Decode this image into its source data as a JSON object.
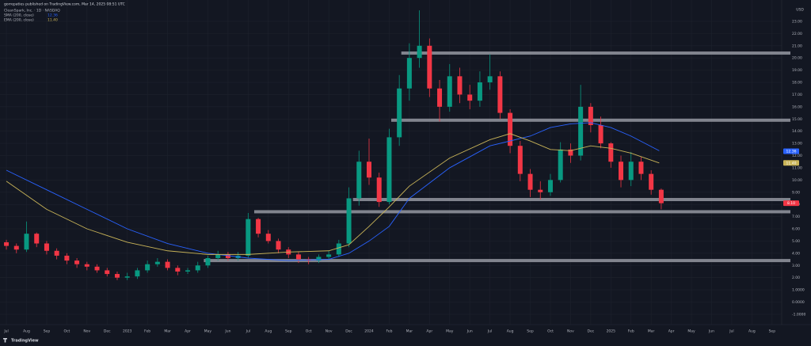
{
  "chart_data": {
    "type": "candlestick",
    "title": "gorrepaties published on TradingView.com, Mar 14, 2025 08:51 UTC",
    "subtitle": "CleanSpark, Inc. · 1D · NASDAQ",
    "currency": "USD",
    "brand": "TradingView",
    "up_color": "#089981",
    "down_color": "#f23645",
    "grid": true,
    "xlim": [
      -0.12,
      38.4
    ],
    "ylim": [
      -1.2,
      24.1
    ],
    "xticks": [
      {
        "value": 0,
        "label": "Jul"
      },
      {
        "value": 1,
        "label": "Aug"
      },
      {
        "value": 2,
        "label": "Sep"
      },
      {
        "value": 3,
        "label": "Oct"
      },
      {
        "value": 4,
        "label": "Nov"
      },
      {
        "value": 5,
        "label": "Dec"
      },
      {
        "value": 6,
        "label": "2023"
      },
      {
        "value": 7,
        "label": "Feb"
      },
      {
        "value": 8,
        "label": "Mar"
      },
      {
        "value": 9,
        "label": "Apr"
      },
      {
        "value": 10,
        "label": "May"
      },
      {
        "value": 11,
        "label": "Jun"
      },
      {
        "value": 12,
        "label": "Jul"
      },
      {
        "value": 13,
        "label": "Aug"
      },
      {
        "value": 14,
        "label": "Sep"
      },
      {
        "value": 15,
        "label": "Oct"
      },
      {
        "value": 16,
        "label": "Nov"
      },
      {
        "value": 17,
        "label": "Dec"
      },
      {
        "value": 18,
        "label": "2024"
      },
      {
        "value": 19,
        "label": "Feb"
      },
      {
        "value": 20,
        "label": "Mar"
      },
      {
        "value": 21,
        "label": "Apr"
      },
      {
        "value": 22,
        "label": "May"
      },
      {
        "value": 23,
        "label": "Jun"
      },
      {
        "value": 24,
        "label": "Jul"
      },
      {
        "value": 25,
        "label": "Aug"
      },
      {
        "value": 26,
        "label": "Sep"
      },
      {
        "value": 27,
        "label": "Oct"
      },
      {
        "value": 28,
        "label": "Nov"
      },
      {
        "value": 29,
        "label": "Dec"
      },
      {
        "value": 30,
        "label": "2025"
      },
      {
        "value": 31,
        "label": "Feb"
      },
      {
        "value": 32,
        "label": "Mar"
      },
      {
        "value": 33,
        "label": "Apr"
      },
      {
        "value": 34,
        "label": "May"
      },
      {
        "value": 35,
        "label": "Jun"
      },
      {
        "value": 36,
        "label": "Jul"
      },
      {
        "value": 37,
        "label": "Aug"
      },
      {
        "value": 38,
        "label": "Sep"
      }
    ],
    "yticks": [
      {
        "value": 23,
        "label": "23.00"
      },
      {
        "value": 22,
        "label": "22.00"
      },
      {
        "value": 21,
        "label": "21.00"
      },
      {
        "value": 20,
        "label": "20.00"
      },
      {
        "value": 19,
        "label": "19.00"
      },
      {
        "value": 18,
        "label": "18.00"
      },
      {
        "value": 17,
        "label": "17.00"
      },
      {
        "value": 16,
        "label": "16.00"
      },
      {
        "value": 15,
        "label": "15.00"
      },
      {
        "value": 14,
        "label": "14.00"
      },
      {
        "value": 13,
        "label": "13.00"
      },
      {
        "value": 12,
        "label": "12.00"
      },
      {
        "value": 11,
        "label": "11.00"
      },
      {
        "value": 10,
        "label": "10.00"
      },
      {
        "value": 9,
        "label": "9.00"
      },
      {
        "value": 8,
        "label": "8.00"
      },
      {
        "value": 7,
        "label": "7.00"
      },
      {
        "value": 6,
        "label": "6.00"
      },
      {
        "value": 5,
        "label": "5.00"
      },
      {
        "value": 4,
        "label": "4.00"
      },
      {
        "value": 3,
        "label": "3.00"
      },
      {
        "value": 2,
        "label": "2.00"
      },
      {
        "value": 1,
        "label": "1.0000"
      },
      {
        "value": 0,
        "label": "0.0000"
      },
      {
        "value": -1,
        "label": "-1.0000"
      }
    ],
    "x": [
      0,
      0.5,
      1,
      1.5,
      2,
      2.5,
      3,
      3.5,
      4,
      4.5,
      5,
      5.5,
      6,
      6.5,
      7,
      7.5,
      8,
      8.5,
      9,
      9.5,
      10,
      10.5,
      11,
      11.5,
      12,
      12.5,
      13,
      13.5,
      14,
      14.5,
      15,
      15.5,
      16,
      16.5,
      17,
      17.5,
      18,
      18.5,
      19,
      19.5,
      20,
      20.5,
      21,
      21.5,
      22,
      22.5,
      23,
      23.5,
      24,
      24.5,
      25,
      25.5,
      26,
      26.5,
      27,
      27.5,
      28,
      28.5,
      29,
      29.5,
      30,
      30.5,
      31,
      31.5,
      32,
      32.5
    ],
    "open": [
      4.9,
      4.6,
      4.3,
      5.6,
      4.8,
      4.2,
      3.8,
      3.4,
      3.1,
      2.9,
      2.6,
      2.3,
      2.0,
      2.1,
      2.6,
      3.1,
      3.3,
      2.8,
      2.5,
      2.6,
      3.0,
      3.6,
      3.9,
      3.6,
      3.8,
      6.8,
      5.6,
      5.0,
      4.3,
      3.9,
      3.5,
      3.4,
      3.7,
      3.9,
      4.8,
      8.5,
      11.5,
      10.2,
      8.2,
      13.5,
      17.5,
      20.0,
      21.0,
      17.5,
      16.0,
      18.5,
      17.0,
      16.5,
      18.0,
      18.5,
      15.5,
      12.8,
      10.5,
      9.2,
      9.0,
      10.0,
      12.5,
      12.0,
      16.0,
      14.5,
      13.0,
      11.5,
      10.0,
      11.5,
      10.5,
      9.2
    ],
    "high": [
      5.1,
      4.8,
      6.6,
      5.7,
      5.0,
      4.4,
      4.0,
      3.6,
      3.3,
      3.1,
      2.8,
      2.5,
      2.4,
      2.8,
      3.4,
      3.6,
      3.5,
      3.0,
      2.8,
      3.3,
      3.8,
      4.2,
      4.1,
      4.1,
      7.3,
      6.9,
      5.9,
      5.2,
      4.5,
      4.1,
      3.7,
      3.9,
      4.2,
      5.1,
      9.4,
      12.4,
      13.4,
      10.6,
      14.2,
      18.6,
      21.2,
      23.9,
      21.6,
      18.2,
      19.5,
      19.2,
      17.8,
      18.9,
      20.3,
      18.9,
      15.8,
      13.2,
      10.9,
      9.9,
      10.5,
      13.1,
      13.0,
      17.8,
      16.3,
      15.2,
      13.1,
      12.0,
      12.3,
      11.9,
      10.8,
      9.3
    ],
    "low": [
      4.3,
      4.0,
      4.1,
      4.5,
      3.9,
      3.5,
      3.1,
      2.8,
      2.6,
      2.4,
      2.1,
      1.8,
      1.8,
      1.9,
      2.4,
      2.9,
      2.6,
      2.2,
      2.3,
      2.4,
      2.8,
      3.4,
      3.4,
      3.4,
      3.6,
      5.3,
      4.8,
      4.0,
      3.6,
      3.2,
      3.1,
      3.2,
      3.5,
      3.7,
      4.5,
      7.9,
      9.6,
      7.8,
      8.0,
      12.8,
      16.5,
      19.2,
      16.8,
      14.8,
      15.6,
      16.3,
      15.8,
      16.0,
      17.4,
      15.0,
      12.2,
      9.9,
      8.6,
      8.4,
      8.7,
      9.8,
      11.4,
      11.6,
      13.9,
      12.6,
      11.0,
      9.4,
      9.5,
      10.0,
      8.8,
      7.6
    ],
    "close": [
      4.6,
      4.3,
      5.6,
      4.8,
      4.2,
      3.8,
      3.4,
      3.1,
      2.9,
      2.6,
      2.3,
      2.0,
      2.1,
      2.6,
      3.1,
      3.3,
      2.8,
      2.5,
      2.6,
      3.0,
      3.6,
      3.9,
      3.6,
      3.8,
      6.8,
      5.6,
      5.0,
      4.3,
      3.9,
      3.5,
      3.4,
      3.7,
      3.9,
      4.8,
      8.5,
      11.5,
      10.2,
      8.2,
      13.5,
      17.5,
      20.0,
      21.0,
      17.5,
      16.0,
      18.5,
      17.0,
      16.5,
      18.0,
      18.5,
      15.5,
      12.8,
      10.5,
      9.2,
      9.0,
      10.0,
      12.5,
      12.0,
      16.0,
      14.5,
      13.0,
      11.5,
      10.0,
      11.5,
      10.5,
      9.2,
      8.1
    ],
    "series": [
      {
        "name": "SMA (200, close)",
        "color": "#2962ff",
        "last_label": "12.36",
        "x": [
          0,
          2,
          4,
          6,
          8,
          10,
          12,
          14,
          16,
          17,
          18,
          19,
          20,
          22,
          24,
          26,
          27,
          28,
          29,
          30,
          31,
          32.4
        ],
        "values": [
          10.8,
          9.2,
          7.6,
          6.0,
          4.8,
          4.0,
          3.6,
          3.4,
          3.5,
          4.0,
          5.0,
          6.2,
          8.5,
          11.0,
          12.8,
          13.6,
          14.3,
          14.6,
          14.7,
          14.3,
          13.6,
          12.4
        ]
      },
      {
        "name": "EMA (200, close)",
        "color": "#c9b458",
        "last_label": "11.40",
        "x": [
          0,
          2,
          4,
          6,
          8,
          10,
          12,
          14,
          16,
          17,
          18,
          19,
          20,
          22,
          24,
          25,
          26,
          27,
          28,
          29,
          30,
          31,
          32.4
        ],
        "values": [
          9.9,
          7.6,
          6.0,
          4.9,
          4.2,
          3.9,
          3.9,
          4.1,
          4.2,
          4.7,
          6.2,
          7.8,
          9.5,
          11.8,
          13.3,
          13.8,
          13.2,
          12.5,
          12.4,
          12.8,
          12.6,
          12.2,
          11.4
        ]
      }
    ],
    "levels": [
      {
        "value": 20.4,
        "start": 19.6
      },
      {
        "value": 14.9,
        "start": 19.1
      },
      {
        "value": 8.4,
        "start": 17.2
      },
      {
        "value": 7.4,
        "start": 12.3
      },
      {
        "value": 3.4,
        "start": 9.8
      }
    ],
    "price_tags": [
      {
        "value": 12.36,
        "label": "12.36",
        "color": "#2962ff"
      },
      {
        "value": 11.4,
        "label": "11.40",
        "color": "#c9b458"
      },
      {
        "value": 8.1,
        "label": "8.10",
        "color": "#f23645"
      }
    ]
  }
}
